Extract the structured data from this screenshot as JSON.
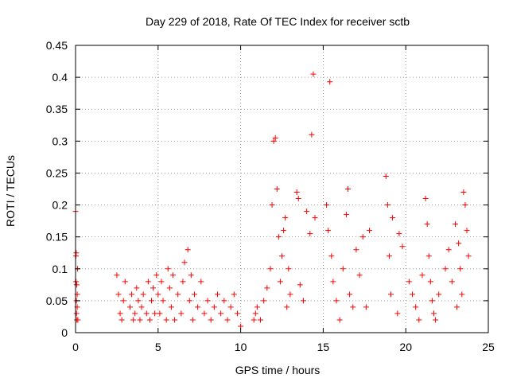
{
  "chart_data": {
    "type": "scatter",
    "title": "Day 229 of 2018, Rate Of TEC Index for receiver sctb",
    "xlabel": "GPS time / hours",
    "ylabel": "ROTI / TECUs",
    "xlim": [
      0,
      25
    ],
    "ylim": [
      0,
      0.45
    ],
    "xticks": [
      0,
      5,
      10,
      15,
      20,
      25
    ],
    "xtick_labels": [
      "0",
      "5",
      "10",
      "15",
      "20",
      "25"
    ],
    "yticks": [
      0,
      0.05,
      0.1,
      0.15,
      0.2,
      0.25,
      0.3,
      0.35,
      0.4,
      0.45
    ],
    "ytick_labels": [
      "0",
      "0.05",
      "0.1",
      "0.15",
      "0.2",
      "0.25",
      "0.3",
      "0.35",
      "0.4",
      "0.45"
    ],
    "grid": true,
    "marker": "plus",
    "color": "#ff0000",
    "series": [
      {
        "name": "ROTI",
        "x": [
          0.0,
          0.02,
          0.03,
          0.05,
          0.06,
          0.08,
          0.1,
          0.1,
          0.12,
          0.14,
          0.04,
          0.07,
          2.5,
          2.6,
          2.7,
          2.8,
          2.9,
          3.0,
          3.3,
          3.4,
          3.5,
          3.6,
          3.7,
          3.8,
          3.9,
          4.0,
          4.1,
          4.3,
          4.4,
          4.5,
          4.6,
          4.7,
          4.8,
          4.9,
          5.0,
          5.1,
          5.2,
          5.3,
          5.5,
          5.6,
          5.7,
          5.8,
          5.9,
          6.0,
          6.2,
          6.4,
          6.5,
          6.6,
          6.8,
          6.9,
          7.0,
          7.1,
          7.2,
          7.4,
          7.6,
          7.8,
          8.0,
          8.2,
          8.4,
          8.6,
          8.8,
          9.0,
          9.2,
          9.4,
          9.6,
          9.8,
          10.0,
          10.8,
          10.9,
          11.0,
          11.2,
          11.4,
          11.6,
          11.8,
          11.9,
          12.0,
          12.1,
          12.2,
          12.3,
          12.4,
          12.5,
          12.6,
          12.7,
          12.8,
          12.9,
          13.0,
          13.4,
          13.5,
          13.6,
          13.8,
          14.0,
          14.2,
          14.3,
          14.4,
          14.5,
          15.2,
          15.3,
          15.4,
          15.5,
          15.6,
          15.8,
          16.0,
          16.2,
          16.4,
          16.5,
          16.6,
          16.8,
          17.0,
          17.2,
          17.4,
          17.6,
          17.8,
          18.8,
          18.9,
          19.0,
          19.1,
          19.2,
          19.5,
          19.6,
          19.8,
          20.2,
          20.4,
          20.6,
          20.8,
          21.0,
          21.2,
          21.3,
          21.4,
          21.5,
          21.6,
          21.7,
          21.8,
          22.0,
          22.4,
          22.6,
          22.8,
          23.0,
          23.1,
          23.2,
          23.3,
          23.4,
          23.5,
          23.6,
          23.7,
          23.8
        ],
        "y": [
          0.19,
          0.12,
          0.08,
          0.05,
          0.03,
          0.02,
          0.04,
          0.06,
          0.1,
          0.02,
          0.125,
          0.075,
          0.09,
          0.06,
          0.03,
          0.02,
          0.05,
          0.08,
          0.04,
          0.06,
          0.02,
          0.03,
          0.07,
          0.05,
          0.02,
          0.04,
          0.06,
          0.03,
          0.08,
          0.02,
          0.05,
          0.07,
          0.03,
          0.09,
          0.06,
          0.03,
          0.08,
          0.05,
          0.02,
          0.1,
          0.07,
          0.04,
          0.09,
          0.02,
          0.06,
          0.03,
          0.08,
          0.11,
          0.13,
          0.05,
          0.09,
          0.02,
          0.06,
          0.04,
          0.08,
          0.03,
          0.05,
          0.02,
          0.04,
          0.06,
          0.03,
          0.05,
          0.02,
          0.04,
          0.06,
          0.03,
          0.01,
          0.02,
          0.03,
          0.04,
          0.02,
          0.05,
          0.07,
          0.1,
          0.2,
          0.3,
          0.305,
          0.225,
          0.15,
          0.08,
          0.12,
          0.16,
          0.18,
          0.04,
          0.1,
          0.06,
          0.22,
          0.21,
          0.075,
          0.05,
          0.19,
          0.155,
          0.31,
          0.405,
          0.18,
          0.2,
          0.16,
          0.393,
          0.12,
          0.08,
          0.05,
          0.02,
          0.1,
          0.185,
          0.225,
          0.06,
          0.04,
          0.13,
          0.09,
          0.15,
          0.04,
          0.16,
          0.245,
          0.2,
          0.12,
          0.06,
          0.18,
          0.03,
          0.155,
          0.135,
          0.08,
          0.06,
          0.04,
          0.02,
          0.09,
          0.21,
          0.17,
          0.12,
          0.08,
          0.05,
          0.03,
          0.02,
          0.06,
          0.1,
          0.13,
          0.08,
          0.17,
          0.04,
          0.14,
          0.1,
          0.06,
          0.22,
          0.2,
          0.16,
          0.12
        ]
      }
    ]
  }
}
